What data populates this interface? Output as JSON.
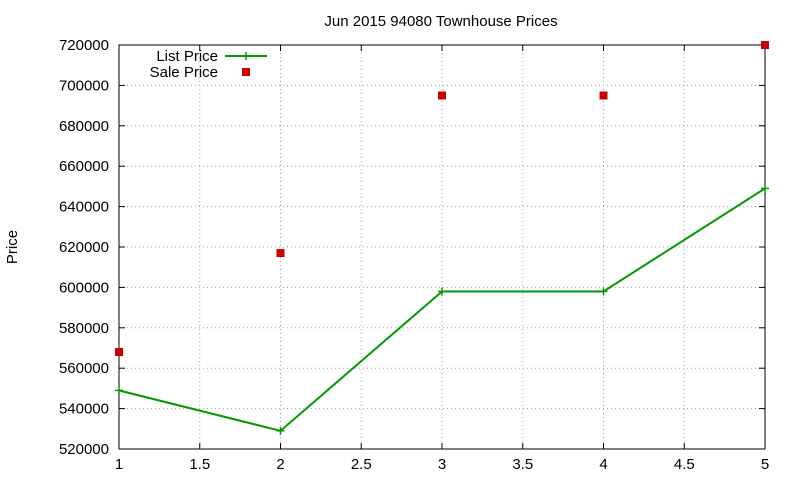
{
  "chart_data": {
    "type": "line",
    "title": "Jun 2015 94080 Townhouse Prices",
    "xlabel": "",
    "ylabel": "Price",
    "x": [
      1,
      2,
      3,
      4,
      5
    ],
    "xlim": [
      1,
      5
    ],
    "ylim": [
      520000,
      720000
    ],
    "xticks": [
      1,
      1.5,
      2,
      2.5,
      3,
      3.5,
      4,
      4.5,
      5
    ],
    "xtick_labels": [
      "1",
      "1.5",
      "2",
      "2.5",
      "3",
      "3.5",
      "4",
      "4.5",
      "5"
    ],
    "yticks": [
      520000,
      540000,
      560000,
      580000,
      600000,
      620000,
      640000,
      660000,
      680000,
      700000,
      720000
    ],
    "ytick_labels": [
      "520000",
      "540000",
      "560000",
      "580000",
      "600000",
      "620000",
      "640000",
      "660000",
      "680000",
      "700000",
      "720000"
    ],
    "grid": true,
    "legend_position": "top-left",
    "series": [
      {
        "name": "List Price",
        "style": "line-plus",
        "color": "#009900",
        "values": [
          549000,
          529000,
          598000,
          598000,
          649000
        ]
      },
      {
        "name": "Sale Price",
        "style": "square-markers",
        "color": "#cc0000",
        "values": [
          568000,
          617000,
          695000,
          695000,
          720000
        ]
      }
    ]
  }
}
